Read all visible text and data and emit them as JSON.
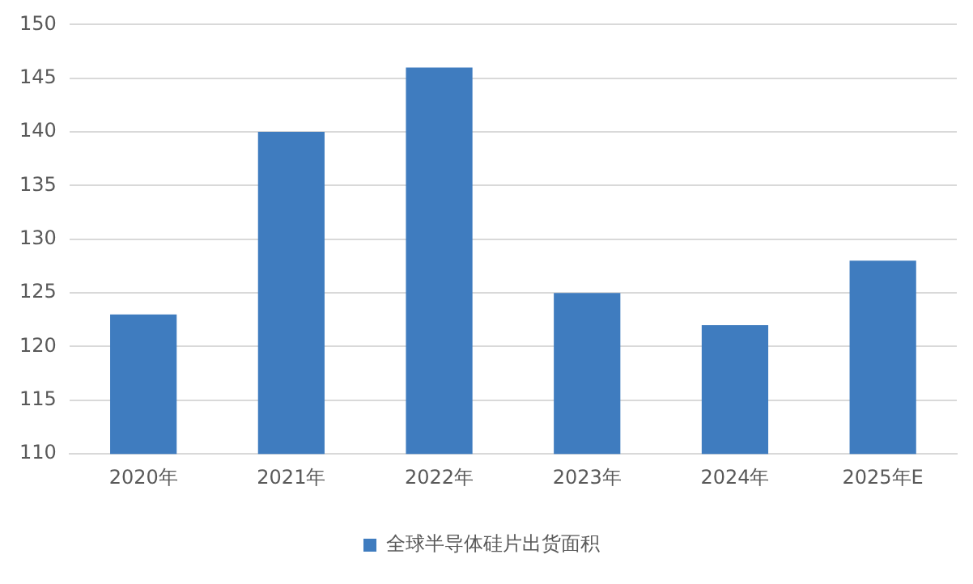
{
  "chart_data": {
    "type": "bar",
    "categories": [
      "2020年",
      "2021年",
      "2022年",
      "2023年",
      "2024年",
      "2025年E"
    ],
    "series": [
      {
        "name": "全球半导体硅片出货面积",
        "color": "#3f7cbf",
        "values": [
          123,
          140,
          146,
          125,
          122,
          128
        ]
      }
    ],
    "ylim": [
      110,
      150
    ],
    "yticks": [
      110,
      115,
      120,
      125,
      130,
      135,
      140,
      145,
      150
    ],
    "grid": "y",
    "legend": "bottom"
  }
}
